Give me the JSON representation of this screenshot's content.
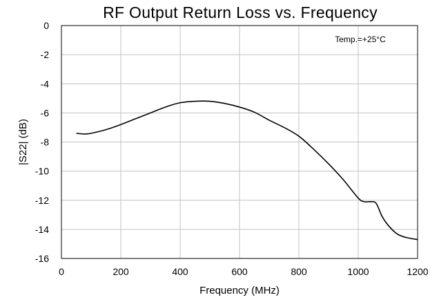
{
  "chart_data": {
    "type": "line",
    "title": "RF Output Return Loss vs. Frequency",
    "xlabel": "Frequency (MHz)",
    "ylabel": "|S22| (dB)",
    "xlim": [
      0,
      1200
    ],
    "ylim": [
      -16,
      0
    ],
    "xticks": [
      0,
      200,
      400,
      600,
      800,
      1000,
      1200
    ],
    "yticks": [
      0,
      -2,
      -4,
      -6,
      -8,
      -10,
      -12,
      -14,
      -16
    ],
    "xtick_labels": [
      "0",
      "200",
      "400",
      "600",
      "800",
      "1000",
      "1200"
    ],
    "ytick_labels": [
      "0",
      "-2",
      "-4",
      "-6",
      "-8",
      "-10",
      "-12",
      "-14",
      "-16"
    ],
    "grid": true,
    "annotation": "Temp.=+25°C",
    "series": [
      {
        "color": "#000000",
        "x": [
          50,
          80,
          100,
          150,
          200,
          250,
          300,
          350,
          400,
          450,
          500,
          550,
          600,
          650,
          700,
          750,
          800,
          850,
          900,
          950,
          1000,
          1020,
          1040,
          1060,
          1080,
          1100,
          1130,
          1160,
          1200
        ],
        "y": [
          -7.4,
          -7.45,
          -7.4,
          -7.15,
          -6.8,
          -6.4,
          -6.0,
          -5.6,
          -5.3,
          -5.2,
          -5.2,
          -5.35,
          -5.6,
          -5.95,
          -6.5,
          -7.0,
          -7.6,
          -8.5,
          -9.5,
          -10.6,
          -11.85,
          -12.1,
          -12.1,
          -12.2,
          -13.1,
          -13.7,
          -14.3,
          -14.55,
          -14.7
        ]
      }
    ]
  }
}
